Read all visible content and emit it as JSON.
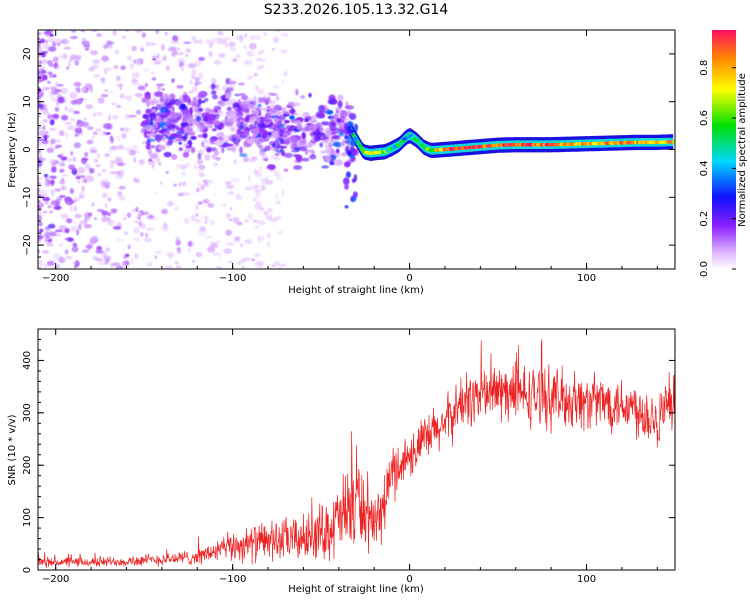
{
  "title": "S233.2026.105.13.32.G14",
  "chart_data": [
    {
      "type": "heatmap",
      "panel": "spectrogram",
      "xlabel": "Height of straight line (km)",
      "ylabel": "Frequency (Hz)",
      "xlim": [
        -210,
        150
      ],
      "ylim": [
        -25,
        25
      ],
      "xticks": [
        -200,
        -100,
        0,
        100
      ],
      "yticks": [
        -20,
        -10,
        0,
        10,
        20
      ],
      "colorbar": {
        "label": "Normalized spectral amplitude",
        "range": [
          0.0,
          0.95
        ],
        "ticks": [
          0.0,
          0.2,
          0.4,
          0.6,
          0.8
        ],
        "colormap": "rainbow (white-violet-blue-cyan-green-yellow-red)"
      },
      "ridge": {
        "description": "dominant spectral line vs height",
        "x": [
          -34,
          -30,
          -26,
          -22,
          -18,
          -14,
          -10,
          -6,
          -2,
          0,
          4,
          8,
          12,
          20,
          30,
          40,
          50,
          60,
          70,
          80,
          90,
          100,
          110,
          120,
          130,
          140,
          150
        ],
        "y": [
          4.5,
          2.0,
          -0.5,
          -0.8,
          -0.6,
          -0.5,
          0.2,
          1.0,
          2.5,
          3.0,
          2.0,
          0.5,
          -0.2,
          0.0,
          0.3,
          0.6,
          0.9,
          1.0,
          1.0,
          1.0,
          1.1,
          1.2,
          1.3,
          1.4,
          1.5,
          1.5,
          1.6
        ],
        "amplitude": [
          0.35,
          0.5,
          0.7,
          0.8,
          0.75,
          0.6,
          0.5,
          0.5,
          0.45,
          0.45,
          0.5,
          0.6,
          0.65,
          0.9,
          0.95,
          0.9,
          0.92,
          0.95,
          0.93,
          0.9,
          0.85,
          0.8,
          0.85,
          0.88,
          0.8,
          0.85,
          0.8
        ]
      }
    },
    {
      "type": "line",
      "panel": "snr",
      "xlabel": "Height of straight line (km)",
      "ylabel": "SNR (10 * v/v)",
      "xlim": [
        -210,
        150
      ],
      "ylim": [
        0,
        460
      ],
      "xticks": [
        -200,
        -100,
        0,
        100
      ],
      "yticks": [
        0,
        100,
        200,
        300,
        400
      ],
      "series": [
        {
          "name": "SNR",
          "color": "#ee2222",
          "trend_x": [
            -210,
            -180,
            -150,
            -120,
            -100,
            -80,
            -60,
            -45,
            -35,
            -30,
            -25,
            -20,
            -15,
            -10,
            0,
            10,
            20,
            30,
            40,
            50,
            60,
            80,
            100,
            120,
            140,
            150
          ],
          "trend_y": [
            15,
            15,
            18,
            25,
            45,
            55,
            60,
            80,
            110,
            140,
            110,
            70,
            120,
            185,
            220,
            250,
            280,
            320,
            335,
            340,
            335,
            330,
            320,
            320,
            290,
            310
          ],
          "spread": [
            10,
            10,
            12,
            15,
            30,
            40,
            45,
            60,
            90,
            110,
            70,
            50,
            60,
            55,
            45,
            50,
            50,
            55,
            60,
            60,
            60,
            60,
            55,
            55,
            60,
            65
          ]
        }
      ]
    }
  ]
}
